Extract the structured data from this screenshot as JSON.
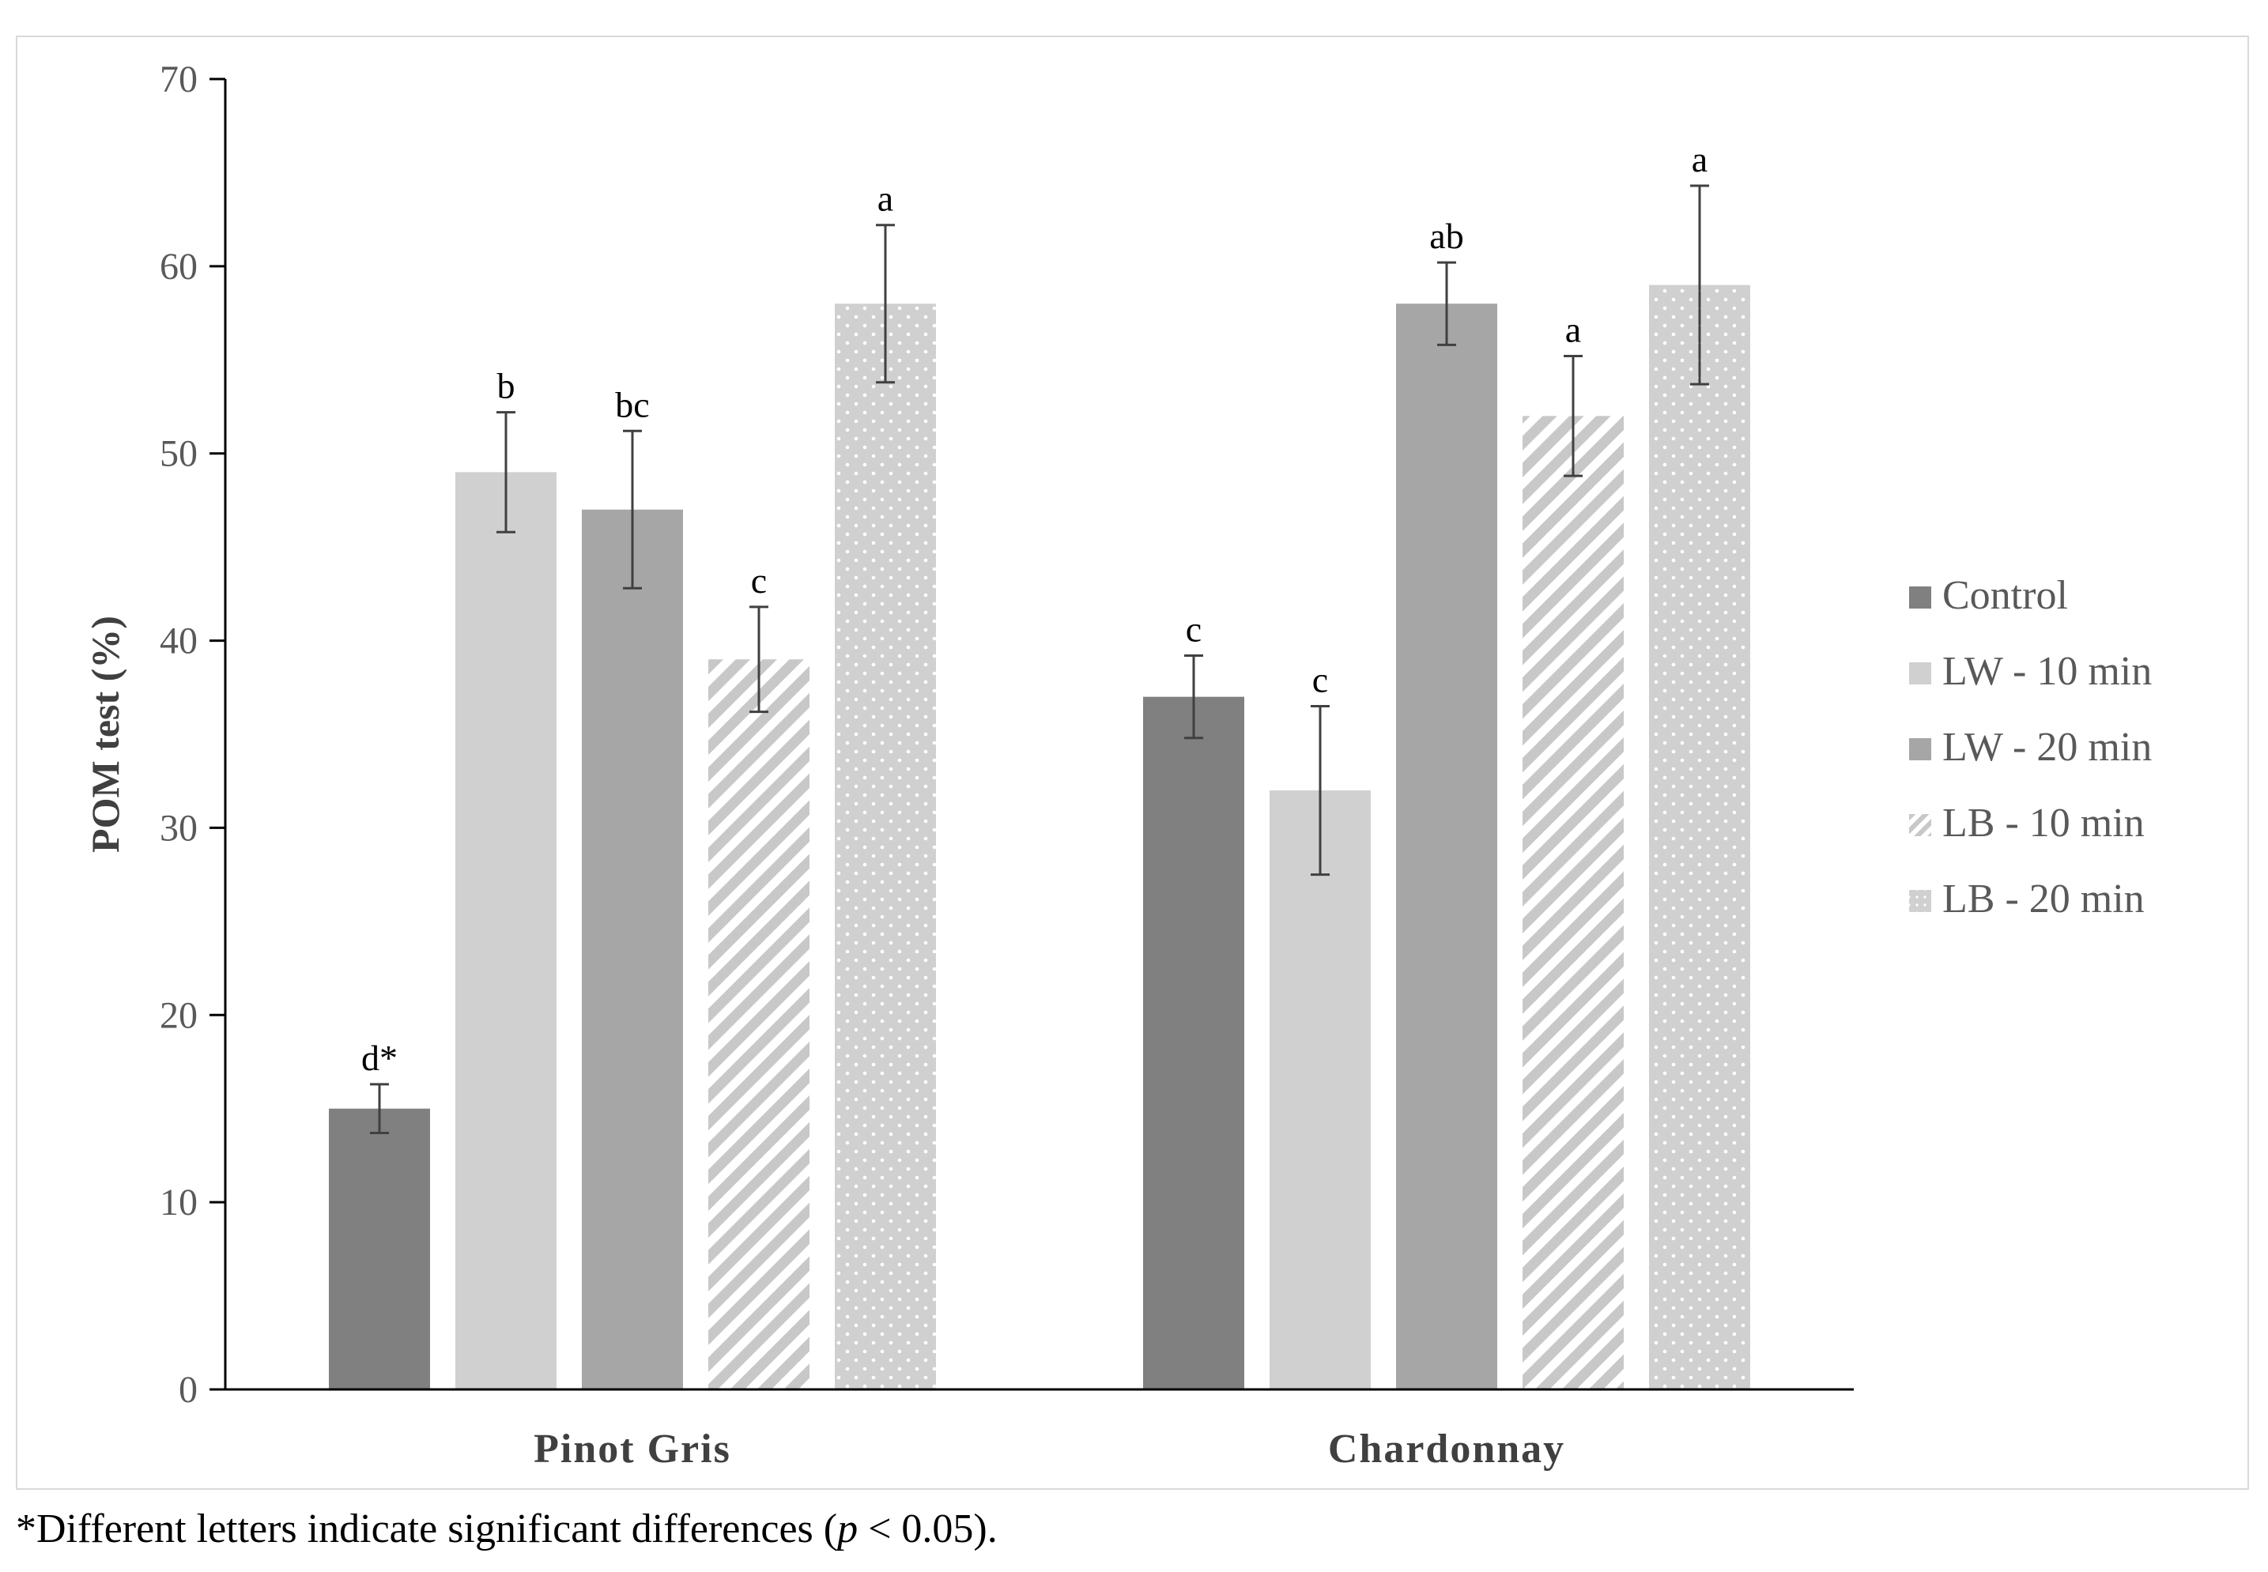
{
  "chart_data": {
    "type": "bar",
    "title": "",
    "xlabel": "",
    "ylabel": "POM test (%)",
    "ylim": [
      0,
      70
    ],
    "yticks": [
      0,
      10,
      20,
      30,
      40,
      50,
      60,
      70
    ],
    "categories": [
      "Pinot Gris",
      "Chardonnay"
    ],
    "legend_position": "right",
    "series": [
      {
        "name": "Control",
        "color": "#808080",
        "pattern": "solid",
        "values": [
          15,
          37
        ],
        "errors": [
          1.3,
          2.2
        ],
        "labels": [
          "d*",
          "c"
        ]
      },
      {
        "name": "LW - 10 min",
        "color": "#d0d0d0",
        "pattern": "solid",
        "values": [
          49,
          32
        ],
        "errors": [
          3.2,
          4.5
        ],
        "labels": [
          "b",
          "c"
        ]
      },
      {
        "name": "LW - 20 min",
        "color": "#a6a6a6",
        "pattern": "solid",
        "values": [
          47,
          58
        ],
        "errors": [
          4.2,
          2.2
        ],
        "labels": [
          "bc",
          "ab"
        ]
      },
      {
        "name": "LB - 10 min",
        "color": "#c8c8c8",
        "pattern": "diagonal",
        "values": [
          39,
          52
        ],
        "errors": [
          2.8,
          3.2
        ],
        "labels": [
          "c",
          "a"
        ]
      },
      {
        "name": "LB - 20 min",
        "color": "#d0d0d0",
        "pattern": "dots",
        "values": [
          58,
          59
        ],
        "errors": [
          4.2,
          5.3
        ],
        "labels": [
          "a",
          "a"
        ]
      }
    ]
  },
  "footnote": {
    "prefix": "*Different letters indicate significant differences (",
    "p_symbol": "p",
    "suffix": " < 0.05)."
  }
}
